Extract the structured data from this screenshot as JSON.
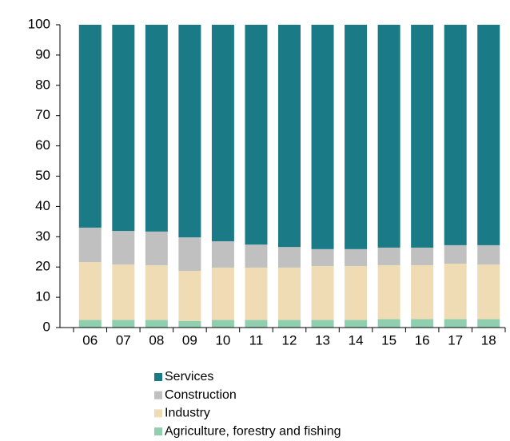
{
  "chart_data": {
    "type": "bar",
    "stacked": true,
    "categories": [
      "06",
      "07",
      "08",
      "09",
      "10",
      "11",
      "12",
      "13",
      "14",
      "15",
      "16",
      "17",
      "18"
    ],
    "series": [
      {
        "name": "Agriculture, forestry and fishing",
        "color": "#8fcfb0",
        "values": [
          2.5,
          2.5,
          2.5,
          2.2,
          2.5,
          2.5,
          2.5,
          2.5,
          2.5,
          2.8,
          2.8,
          2.8,
          2.8
        ]
      },
      {
        "name": "Industry",
        "color": "#f0dcb4",
        "values": [
          19.1,
          18.3,
          18.1,
          16.5,
          17.3,
          17.3,
          17.3,
          17.8,
          17.8,
          17.8,
          17.8,
          18.3,
          18.0
        ]
      },
      {
        "name": "Construction",
        "color": "#c0c0c0",
        "values": [
          11.4,
          11.1,
          11.1,
          11.1,
          8.7,
          7.6,
          6.8,
          5.6,
          5.6,
          5.8,
          5.8,
          6.1,
          6.4
        ]
      },
      {
        "name": "Services",
        "color": "#1a7a86",
        "values": [
          67.0,
          68.1,
          68.3,
          70.2,
          71.5,
          72.6,
          73.4,
          74.1,
          74.1,
          73.6,
          73.6,
          72.8,
          72.8
        ]
      }
    ],
    "ylim": [
      0,
      100
    ],
    "yticks": [
      0,
      10,
      20,
      30,
      40,
      50,
      60,
      70,
      80,
      90,
      100
    ],
    "grid": false
  }
}
